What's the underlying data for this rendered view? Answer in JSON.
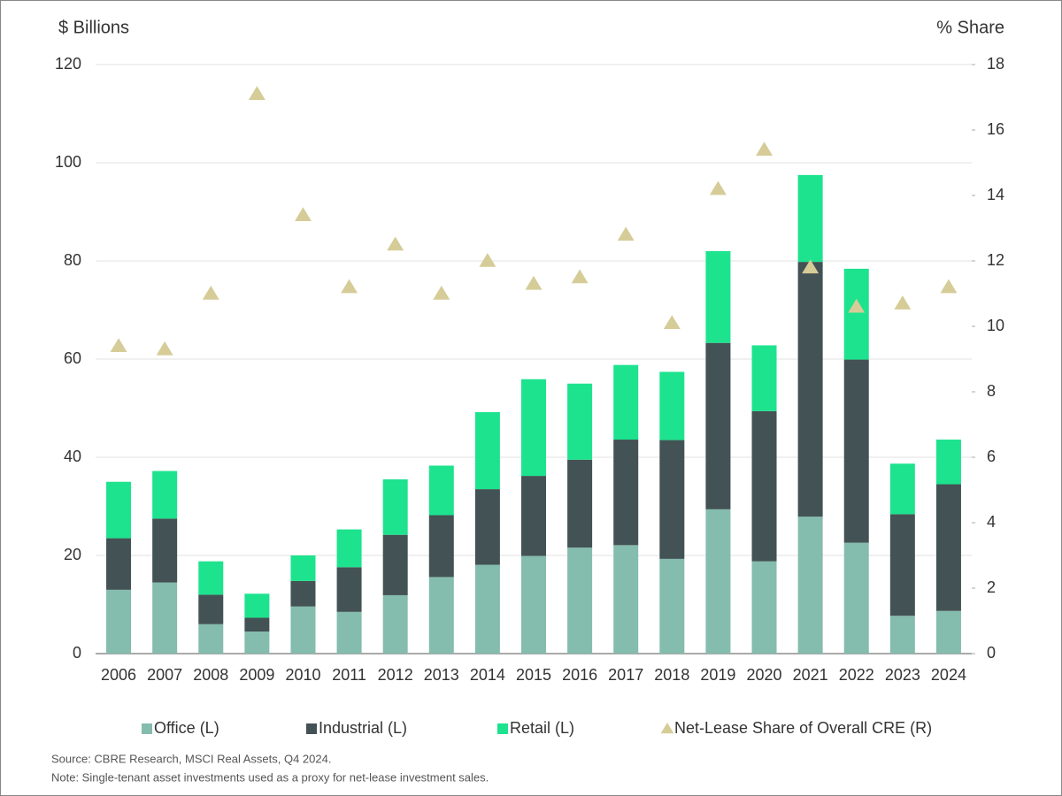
{
  "chart_data": {
    "type": "stacked-bar-with-markers",
    "y_label": "$ Billions",
    "y2_label": "% Share",
    "categories": [
      "2006",
      "2007",
      "2008",
      "2009",
      "2010",
      "2011",
      "2012",
      "2013",
      "2014",
      "2015",
      "2016",
      "2017",
      "2018",
      "2019",
      "2020",
      "2021",
      "2022",
      "2023",
      "2024"
    ],
    "series": [
      {
        "name": "Office (L)",
        "color": "#84bcad",
        "values": [
          13,
          14.5,
          6,
          4.5,
          9.6,
          8.5,
          11.9,
          15.6,
          18.1,
          19.9,
          21.6,
          22.1,
          19.3,
          29.4,
          18.8,
          27.9,
          22.6,
          7.7,
          8.7
        ]
      },
      {
        "name": "Industrial (L)",
        "color": "#435254",
        "values": [
          10.5,
          13,
          6,
          2.8,
          5.2,
          9.1,
          12.3,
          12.6,
          15.4,
          16.3,
          17.9,
          21.5,
          24.2,
          33.9,
          30.6,
          51.9,
          37.3,
          20.7,
          25.8
        ]
      },
      {
        "name": "Retail (L)",
        "color": "#1de38e",
        "values": [
          11.5,
          9.7,
          6.8,
          4.9,
          5.2,
          7.7,
          11.3,
          10.1,
          15.7,
          19.7,
          15.5,
          15.2,
          13.9,
          18.7,
          13.4,
          17.7,
          18.5,
          10.3,
          9.1
        ]
      },
      {
        "name": "Net-Lease Share of Overall CRE (R)",
        "color": "#d5cc98",
        "axis": "y2",
        "marker": "triangle",
        "values": [
          9.4,
          9.3,
          11.0,
          17.1,
          13.4,
          11.2,
          12.5,
          11.0,
          12.0,
          11.3,
          11.5,
          12.8,
          10.1,
          14.2,
          15.4,
          11.8,
          10.6,
          10.7,
          11.2
        ]
      }
    ],
    "ylim": [
      0,
      120
    ],
    "yticks": [
      0,
      20,
      40,
      60,
      80,
      100,
      120
    ],
    "y2lim": [
      0,
      18
    ],
    "y2ticks": [
      0,
      2,
      4,
      6,
      8,
      10,
      12,
      14,
      16,
      18
    ],
    "grid": true,
    "source": "Source: CBRE Research, MSCI Real Assets, Q4 2024.",
    "note": "Note: Single-tenant asset investments used as a proxy for net-lease investment sales."
  }
}
